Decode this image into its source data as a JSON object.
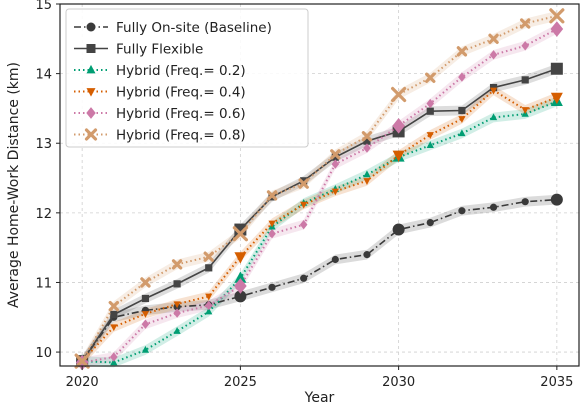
{
  "chart_data": {
    "type": "line",
    "title": "",
    "xlabel": "Year",
    "ylabel": "Average Home-Work Distance (km)",
    "xlim": [
      2019.3,
      2035.7
    ],
    "ylim": [
      9.8,
      15.0
    ],
    "xticks": [
      "2020",
      "2025",
      "2030",
      "2035"
    ],
    "yticks": [
      "10",
      "11",
      "12",
      "13",
      "14",
      "15"
    ],
    "grid": true,
    "legend_position": "top-left",
    "x": [
      2020,
      2021,
      2022,
      2023,
      2024,
      2025,
      2026,
      2027,
      2028,
      2029,
      2030,
      2031,
      2032,
      2033,
      2034,
      2035
    ],
    "series": [
      {
        "name": "Fully On-site (Baseline)",
        "color": "#3a3a3a",
        "marker": "circle",
        "dash": "dashdot",
        "values": [
          9.87,
          10.5,
          10.6,
          10.65,
          10.68,
          10.8,
          10.93,
          11.06,
          11.33,
          11.4,
          11.76,
          11.86,
          12.03,
          12.08,
          12.16,
          12.19
        ]
      },
      {
        "name": "Fully Flexible",
        "color": "#444444",
        "marker": "square",
        "dash": "solid",
        "values": [
          9.87,
          10.54,
          10.77,
          10.98,
          11.21,
          11.76,
          12.23,
          12.46,
          12.8,
          13.03,
          13.17,
          13.46,
          13.47,
          13.8,
          13.91,
          14.07
        ]
      },
      {
        "name": "Hybrid (Freq.= 0.2)",
        "color": "#009e73",
        "marker": "triangle-up",
        "dash": "dotted",
        "values": [
          9.87,
          9.85,
          10.03,
          10.3,
          10.58,
          11.06,
          11.8,
          12.14,
          12.34,
          12.55,
          12.8,
          12.97,
          13.14,
          13.37,
          13.42,
          13.6
        ]
      },
      {
        "name": "Hybrid (Freq.= 0.4)",
        "color": "#d55e00",
        "marker": "triangle-down",
        "dash": "dotted",
        "values": [
          9.87,
          10.36,
          10.55,
          10.69,
          10.8,
          11.37,
          11.85,
          12.12,
          12.31,
          12.46,
          12.83,
          13.12,
          13.35,
          13.76,
          13.48,
          13.66
        ]
      },
      {
        "name": "Hybrid (Freq.= 0.6)",
        "color": "#cc79a7",
        "marker": "diamond",
        "dash": "dotted",
        "values": [
          9.85,
          9.93,
          10.4,
          10.56,
          10.67,
          10.95,
          11.7,
          11.83,
          12.7,
          12.93,
          13.25,
          13.57,
          13.95,
          14.27,
          14.4,
          14.64
        ]
      },
      {
        "name": "Hybrid (Freq.= 0.8)",
        "color": "#d29b6c",
        "marker": "x",
        "dash": "dotted",
        "values": [
          9.87,
          10.66,
          11.0,
          11.26,
          11.37,
          11.7,
          12.25,
          12.42,
          12.84,
          13.1,
          13.7,
          13.94,
          14.32,
          14.5,
          14.72,
          14.83
        ]
      }
    ]
  }
}
